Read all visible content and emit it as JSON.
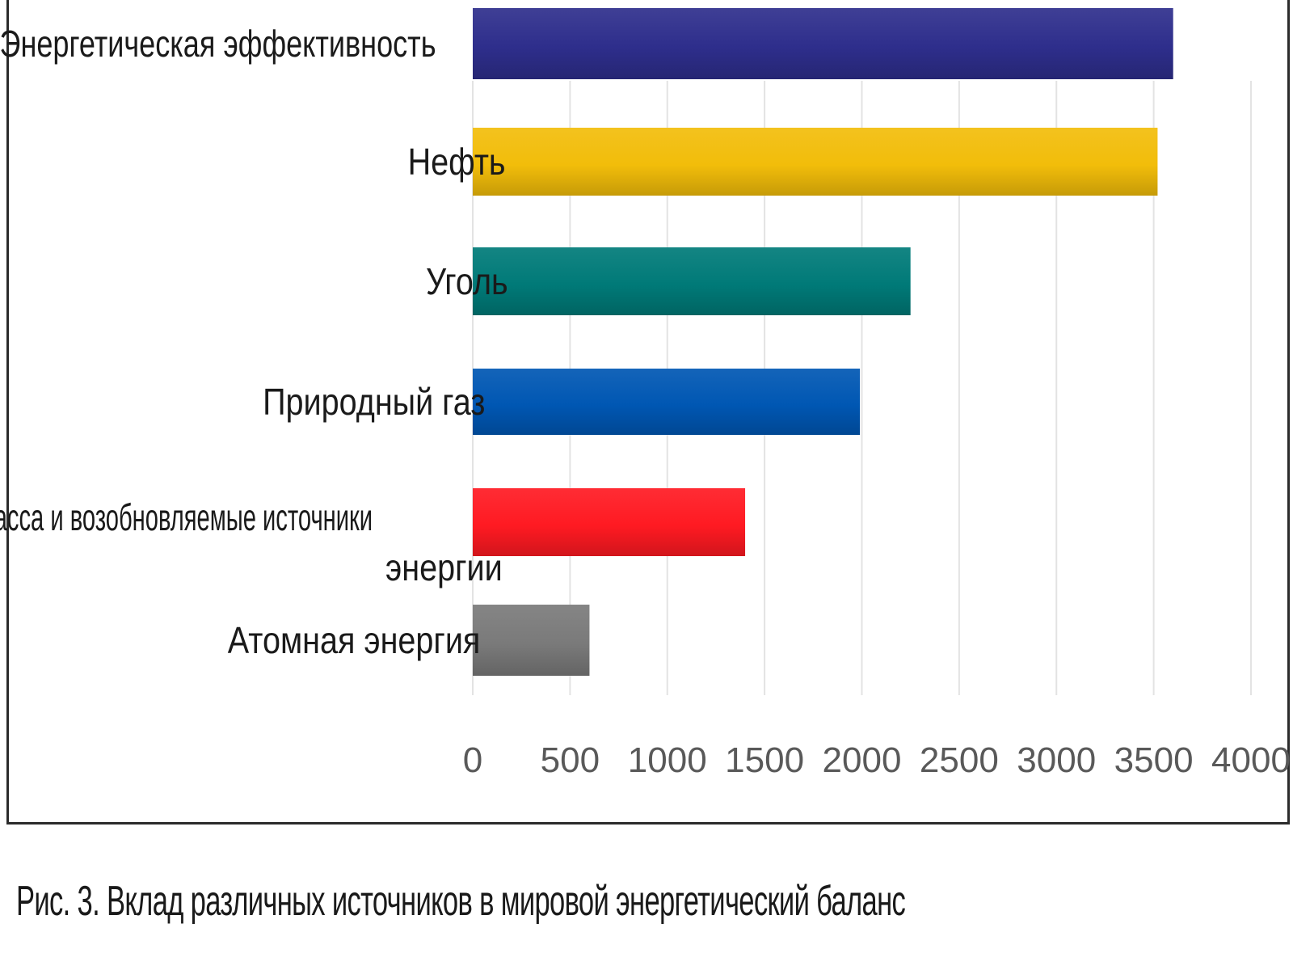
{
  "chart_data": {
    "type": "bar",
    "orientation": "horizontal",
    "categories": [
      "Энергетическая эффективность",
      "Нефть",
      "Уголь",
      "Природный газ",
      "Биомасса и возобновляемые источники энергии",
      "Атомная энергия"
    ],
    "category_label_lines": [
      [
        "Энергетическая эффективность"
      ],
      [
        "Нефть"
      ],
      [
        "Уголь"
      ],
      [
        "Природный газ"
      ],
      [
        "Биомасса и возобновляемые источники",
        "энергии"
      ],
      [
        "Атомная энергия"
      ]
    ],
    "values": [
      3600,
      3520,
      2250,
      1990,
      1400,
      600
    ],
    "colors": [
      "#2e2e8c",
      "#f2bd0a",
      "#007a78",
      "#0057b3",
      "#ff1a22",
      "#7a7a7a"
    ],
    "xlim": [
      0,
      4000
    ],
    "xticks": [
      "0",
      "500",
      "1000",
      "1500",
      "2000",
      "2500",
      "3000",
      "3500",
      "4000"
    ],
    "grid": "vertical",
    "legend": "none",
    "xlabel": "",
    "ylabel": ""
  },
  "caption": "Рис. 3. Вклад различных источников в мировой энергетический баланс"
}
